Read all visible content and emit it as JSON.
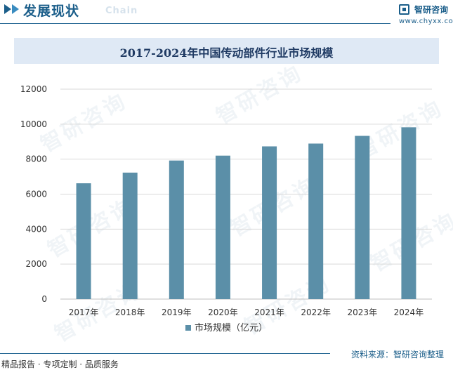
{
  "header": {
    "title": "发展现状",
    "subtitle": "Chain",
    "brand_name": "智研咨询",
    "brand_url": "www.chyxx.com"
  },
  "watermark_text": "智研咨询",
  "chart_data": {
    "type": "bar",
    "title": "2017-2024年中国传动部件行业市场规模",
    "categories": [
      "2017年",
      "2018年",
      "2019年",
      "2020年",
      "2021年",
      "2022年",
      "2023年",
      "2024年"
    ],
    "series": [
      {
        "name": "市场规模（亿元）",
        "values": [
          6620,
          7230,
          7920,
          8200,
          8730,
          8890,
          9330,
          9820
        ],
        "color": "#5b8fa8"
      }
    ],
    "ylim": [
      0,
      12000
    ],
    "yticks": [
      0,
      2000,
      4000,
      6000,
      8000,
      10000,
      12000
    ],
    "grid": true,
    "legend": "bottom-center",
    "xlabel": "",
    "ylabel": ""
  },
  "footer": {
    "left": "精品报告 · 专项定制 · 品质服务",
    "right": "资料来源：智研咨询整理"
  }
}
